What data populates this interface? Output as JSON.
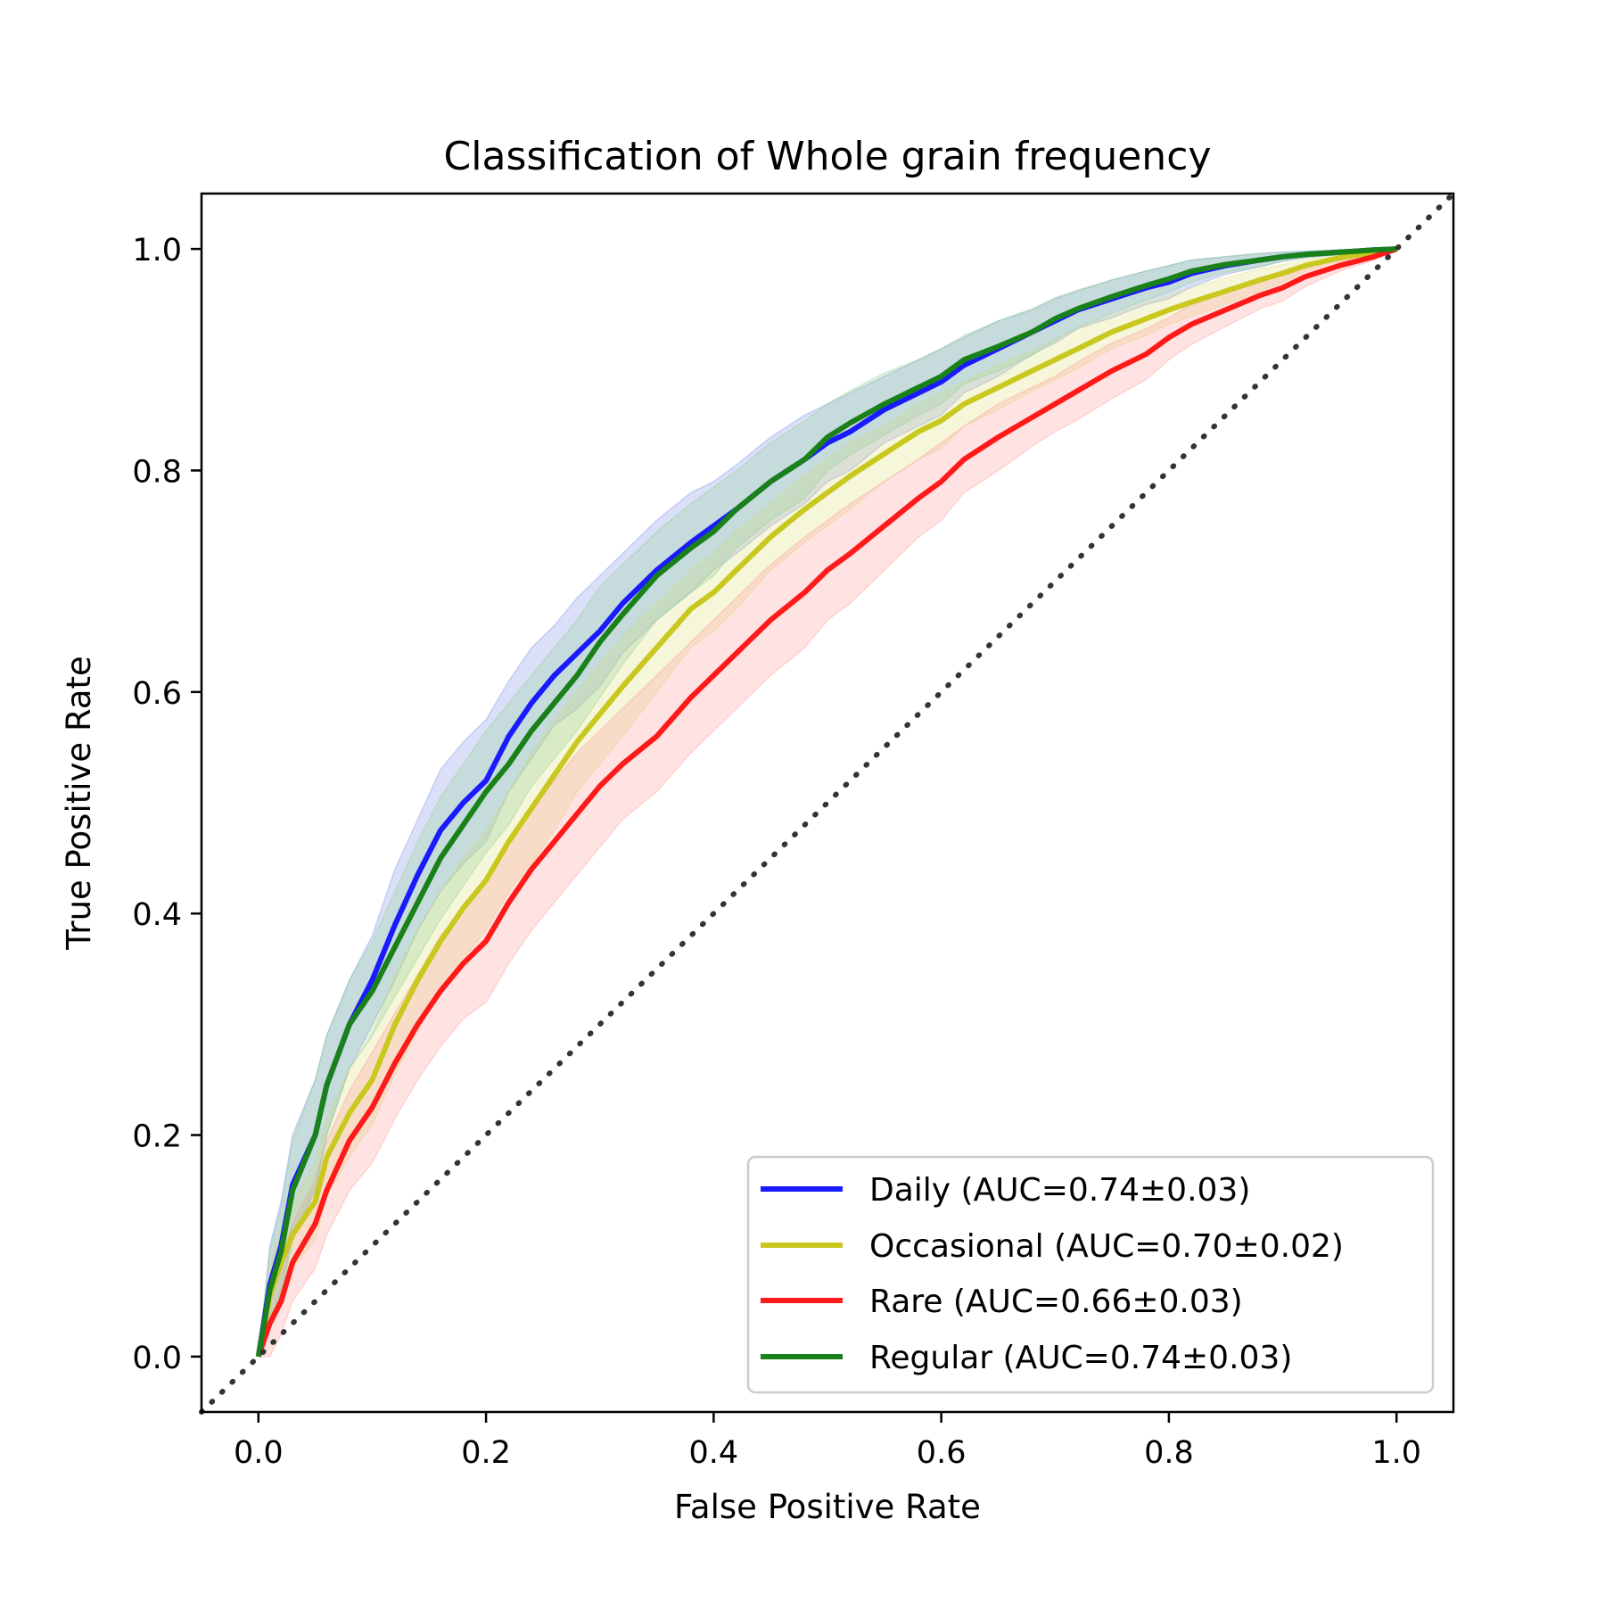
{
  "chart_data": {
    "type": "line",
    "title": "Classification of Whole grain frequency",
    "xlabel": "False Positive Rate",
    "ylabel": "True Positive Rate",
    "xlim": [
      -0.05,
      1.05
    ],
    "ylim": [
      -0.05,
      1.05
    ],
    "xticks": [
      "0.0",
      "0.2",
      "0.4",
      "0.6",
      "0.8",
      "1.0"
    ],
    "yticks": [
      "0.0",
      "0.2",
      "0.4",
      "0.6",
      "0.8",
      "1.0"
    ],
    "grid": false,
    "legend_position": "lower-right",
    "diagonal": {
      "x": [
        -0.05,
        1.05
      ],
      "y": [
        -0.05,
        1.05
      ],
      "color": "#333333",
      "style": "dotted"
    },
    "x": [
      0,
      0.01,
      0.02,
      0.03,
      0.05,
      0.06,
      0.08,
      0.1,
      0.12,
      0.14,
      0.16,
      0.18,
      0.2,
      0.22,
      0.24,
      0.26,
      0.28,
      0.3,
      0.32,
      0.35,
      0.38,
      0.4,
      0.42,
      0.45,
      0.48,
      0.5,
      0.52,
      0.55,
      0.58,
      0.6,
      0.62,
      0.65,
      0.68,
      0.7,
      0.72,
      0.75,
      0.78,
      0.8,
      0.82,
      0.85,
      0.88,
      0.9,
      0.92,
      0.95,
      0.98,
      1.0
    ],
    "series": [
      {
        "name": "Daily (AUC=0.74±0.03)",
        "color": "#1a1aff",
        "band_color": "#7f8fe6",
        "y": [
          0,
          0.065,
          0.1,
          0.155,
          0.2,
          0.245,
          0.3,
          0.34,
          0.39,
          0.435,
          0.475,
          0.5,
          0.52,
          0.56,
          0.59,
          0.615,
          0.635,
          0.655,
          0.68,
          0.71,
          0.735,
          0.75,
          0.765,
          0.79,
          0.81,
          0.825,
          0.835,
          0.855,
          0.87,
          0.88,
          0.895,
          0.91,
          0.925,
          0.935,
          0.945,
          0.955,
          0.965,
          0.97,
          0.978,
          0.985,
          0.99,
          0.993,
          0.995,
          0.997,
          0.999,
          1.0
        ],
        "upper": [
          0,
          0.1,
          0.14,
          0.2,
          0.25,
          0.29,
          0.34,
          0.38,
          0.44,
          0.485,
          0.53,
          0.555,
          0.575,
          0.61,
          0.64,
          0.66,
          0.685,
          0.705,
          0.725,
          0.755,
          0.78,
          0.79,
          0.805,
          0.83,
          0.85,
          0.86,
          0.87,
          0.885,
          0.9,
          0.91,
          0.92,
          0.935,
          0.945,
          0.955,
          0.962,
          0.972,
          0.98,
          0.985,
          0.99,
          0.993,
          0.996,
          0.997,
          0.998,
          0.999,
          1.0,
          1.0
        ],
        "lower": [
          0,
          0.03,
          0.06,
          0.11,
          0.15,
          0.2,
          0.26,
          0.3,
          0.34,
          0.385,
          0.42,
          0.445,
          0.465,
          0.51,
          0.54,
          0.57,
          0.585,
          0.605,
          0.635,
          0.665,
          0.69,
          0.71,
          0.725,
          0.75,
          0.77,
          0.79,
          0.8,
          0.825,
          0.84,
          0.85,
          0.87,
          0.885,
          0.905,
          0.915,
          0.928,
          0.938,
          0.95,
          0.955,
          0.966,
          0.977,
          0.984,
          0.989,
          0.992,
          0.995,
          0.998,
          1.0
        ]
      },
      {
        "name": "Occasional (AUC=0.70±0.02)",
        "color": "#c8c81e",
        "band_color": "#e0e07a",
        "y": [
          0,
          0.055,
          0.085,
          0.11,
          0.14,
          0.18,
          0.22,
          0.25,
          0.3,
          0.34,
          0.375,
          0.405,
          0.43,
          0.465,
          0.495,
          0.525,
          0.555,
          0.58,
          0.605,
          0.64,
          0.675,
          0.69,
          0.71,
          0.74,
          0.765,
          0.78,
          0.795,
          0.815,
          0.835,
          0.845,
          0.86,
          0.875,
          0.89,
          0.9,
          0.91,
          0.925,
          0.937,
          0.945,
          0.952,
          0.962,
          0.972,
          0.978,
          0.985,
          0.992,
          0.997,
          1.0
        ],
        "upper": [
          0,
          0.08,
          0.115,
          0.14,
          0.175,
          0.215,
          0.26,
          0.29,
          0.345,
          0.385,
          0.42,
          0.45,
          0.475,
          0.51,
          0.545,
          0.575,
          0.6,
          0.625,
          0.65,
          0.68,
          0.71,
          0.725,
          0.745,
          0.77,
          0.795,
          0.81,
          0.825,
          0.84,
          0.86,
          0.87,
          0.88,
          0.895,
          0.908,
          0.918,
          0.928,
          0.94,
          0.952,
          0.958,
          0.965,
          0.974,
          0.982,
          0.986,
          0.99,
          0.995,
          0.998,
          1.0
        ],
        "lower": [
          0,
          0.03,
          0.055,
          0.08,
          0.105,
          0.145,
          0.18,
          0.21,
          0.255,
          0.295,
          0.33,
          0.36,
          0.385,
          0.42,
          0.445,
          0.475,
          0.51,
          0.535,
          0.56,
          0.6,
          0.64,
          0.655,
          0.675,
          0.71,
          0.735,
          0.75,
          0.765,
          0.79,
          0.81,
          0.82,
          0.84,
          0.855,
          0.872,
          0.882,
          0.892,
          0.91,
          0.922,
          0.932,
          0.939,
          0.95,
          0.962,
          0.97,
          0.98,
          0.989,
          0.996,
          1.0
        ]
      },
      {
        "name": "Rare (AUC=0.66±0.03)",
        "color": "#ff1a1a",
        "band_color": "#ff9999",
        "y": [
          0,
          0.03,
          0.05,
          0.085,
          0.12,
          0.15,
          0.195,
          0.225,
          0.265,
          0.3,
          0.33,
          0.355,
          0.375,
          0.41,
          0.44,
          0.465,
          0.49,
          0.515,
          0.535,
          0.56,
          0.595,
          0.615,
          0.635,
          0.665,
          0.69,
          0.71,
          0.725,
          0.75,
          0.775,
          0.79,
          0.81,
          0.83,
          0.848,
          0.86,
          0.872,
          0.89,
          0.905,
          0.92,
          0.932,
          0.945,
          0.958,
          0.965,
          0.975,
          0.985,
          0.993,
          1.0
        ],
        "upper": [
          0,
          0.06,
          0.085,
          0.12,
          0.16,
          0.195,
          0.24,
          0.275,
          0.31,
          0.345,
          0.38,
          0.405,
          0.43,
          0.465,
          0.495,
          0.52,
          0.545,
          0.565,
          0.585,
          0.615,
          0.645,
          0.665,
          0.685,
          0.715,
          0.74,
          0.755,
          0.77,
          0.79,
          0.81,
          0.825,
          0.84,
          0.86,
          0.875,
          0.885,
          0.898,
          0.915,
          0.928,
          0.938,
          0.95,
          0.96,
          0.97,
          0.977,
          0.984,
          0.99,
          0.997,
          1.0
        ],
        "lower": [
          0,
          0.0,
          0.02,
          0.05,
          0.08,
          0.11,
          0.15,
          0.175,
          0.215,
          0.25,
          0.28,
          0.305,
          0.32,
          0.355,
          0.385,
          0.41,
          0.435,
          0.46,
          0.485,
          0.51,
          0.545,
          0.565,
          0.585,
          0.615,
          0.64,
          0.665,
          0.68,
          0.71,
          0.74,
          0.755,
          0.78,
          0.8,
          0.822,
          0.835,
          0.846,
          0.865,
          0.882,
          0.9,
          0.914,
          0.93,
          0.946,
          0.953,
          0.966,
          0.98,
          0.99,
          1.0
        ]
      },
      {
        "name": "Regular (AUC=0.74±0.03)",
        "color": "#1a801a",
        "band_color": "#8fd08f",
        "y": [
          0,
          0.06,
          0.095,
          0.15,
          0.2,
          0.245,
          0.3,
          0.33,
          0.37,
          0.41,
          0.45,
          0.48,
          0.51,
          0.535,
          0.565,
          0.59,
          0.615,
          0.645,
          0.67,
          0.705,
          0.73,
          0.745,
          0.765,
          0.79,
          0.81,
          0.83,
          0.843,
          0.86,
          0.875,
          0.885,
          0.9,
          0.912,
          0.925,
          0.937,
          0.946,
          0.957,
          0.967,
          0.973,
          0.98,
          0.986,
          0.99,
          0.993,
          0.995,
          0.997,
          0.999,
          1.0
        ],
        "upper": [
          0,
          0.095,
          0.135,
          0.195,
          0.25,
          0.29,
          0.34,
          0.375,
          0.42,
          0.465,
          0.505,
          0.535,
          0.565,
          0.59,
          0.615,
          0.64,
          0.665,
          0.695,
          0.715,
          0.745,
          0.77,
          0.785,
          0.8,
          0.825,
          0.845,
          0.86,
          0.872,
          0.888,
          0.9,
          0.91,
          0.922,
          0.935,
          0.946,
          0.956,
          0.963,
          0.972,
          0.98,
          0.985,
          0.99,
          0.993,
          0.996,
          0.997,
          0.998,
          0.999,
          1.0,
          1.0
        ],
        "lower": [
          0,
          0.025,
          0.055,
          0.105,
          0.15,
          0.2,
          0.26,
          0.29,
          0.325,
          0.36,
          0.395,
          0.425,
          0.455,
          0.48,
          0.515,
          0.54,
          0.565,
          0.595,
          0.625,
          0.665,
          0.69,
          0.705,
          0.73,
          0.755,
          0.775,
          0.8,
          0.814,
          0.832,
          0.85,
          0.86,
          0.878,
          0.89,
          0.904,
          0.918,
          0.929,
          0.942,
          0.954,
          0.961,
          0.97,
          0.979,
          0.984,
          0.989,
          0.992,
          0.995,
          0.998,
          1.0
        ]
      }
    ]
  }
}
